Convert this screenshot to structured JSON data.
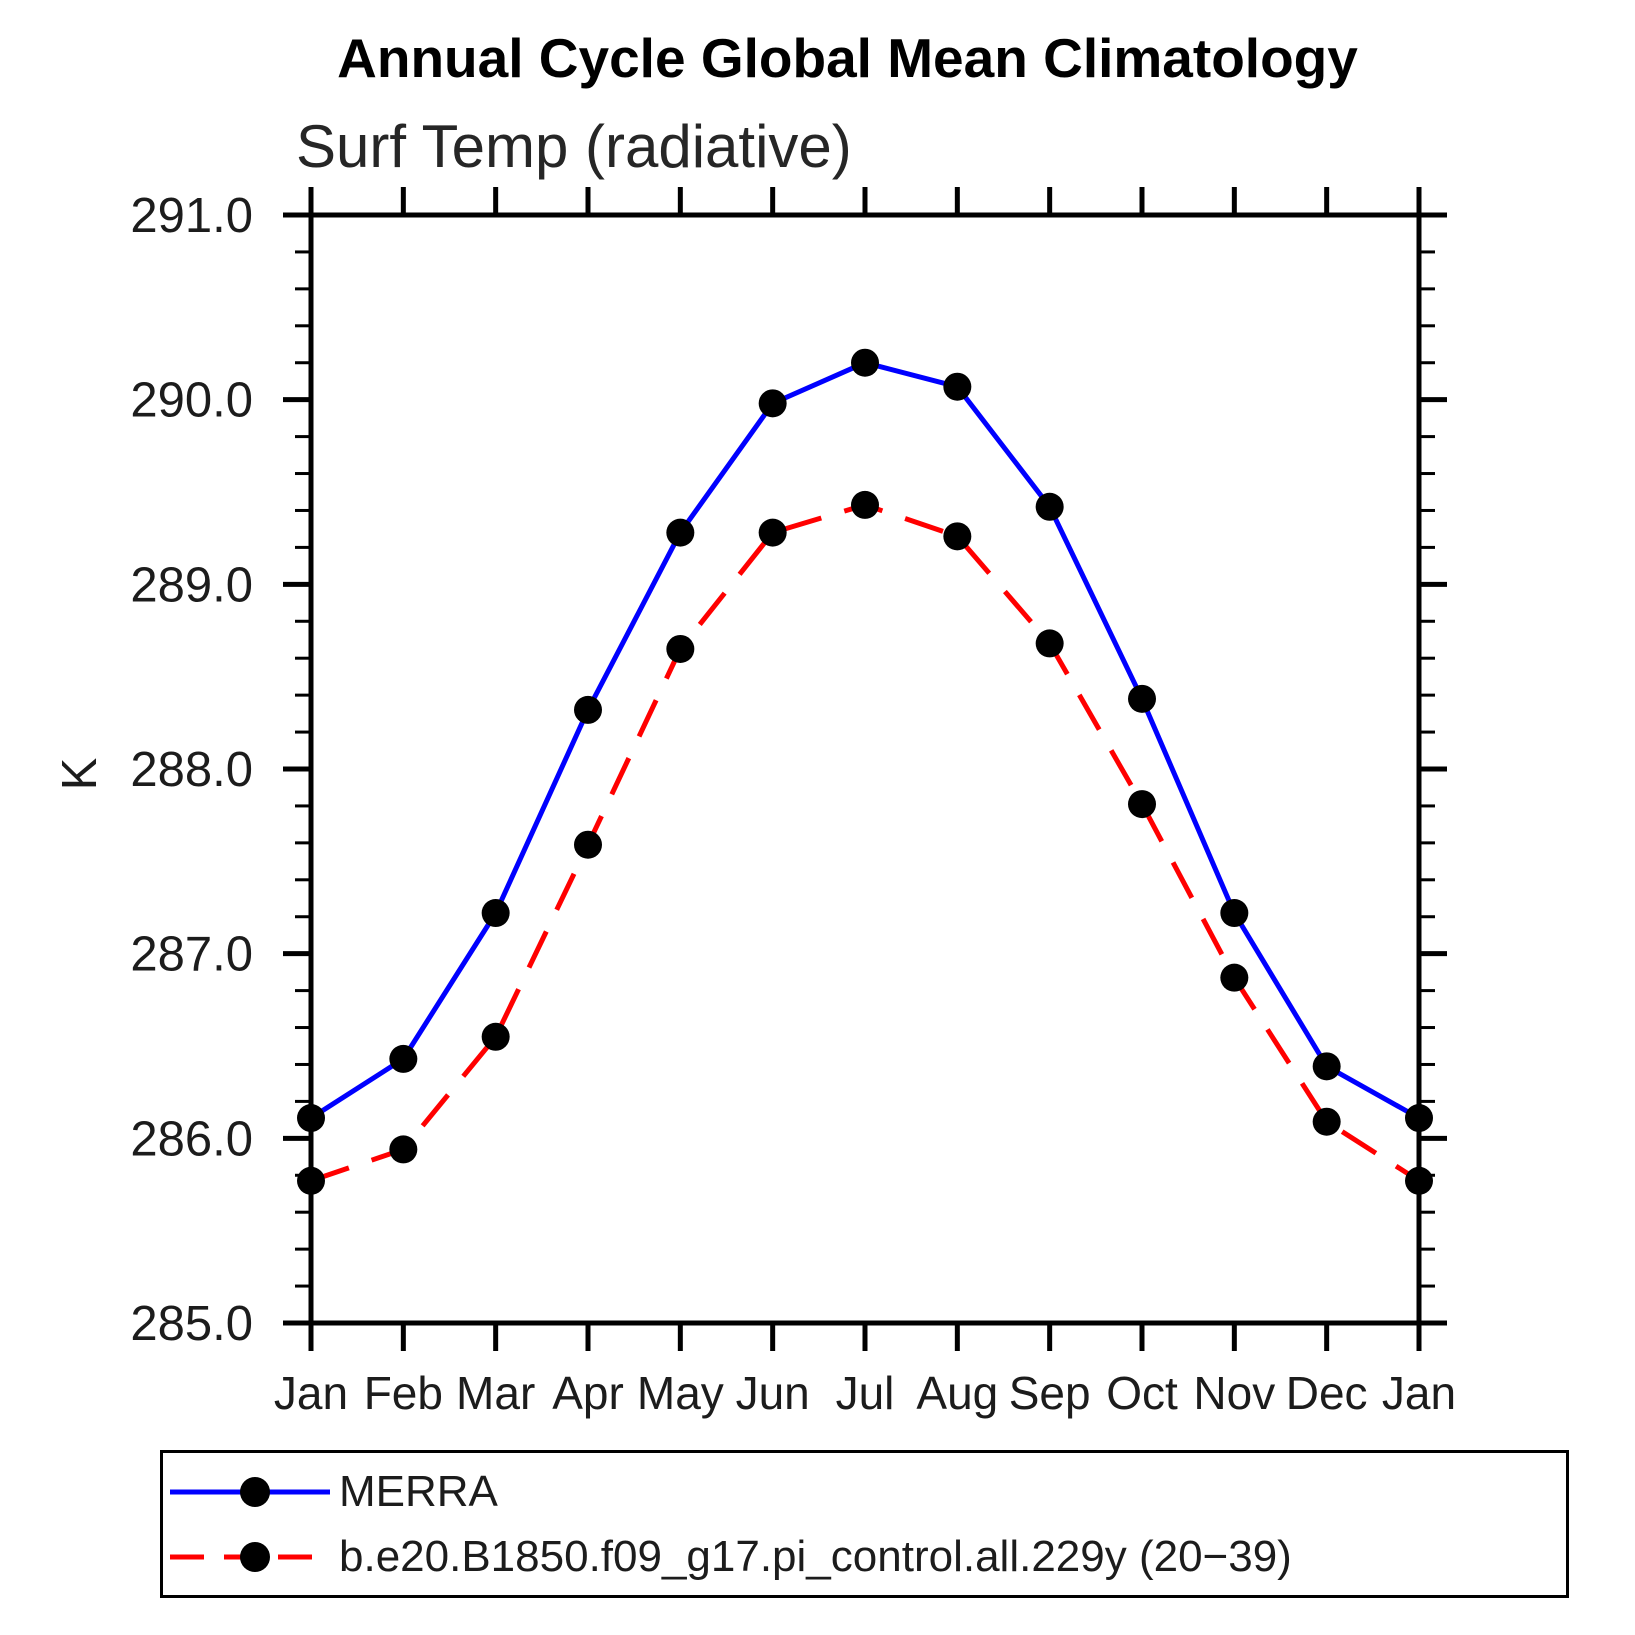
{
  "chart_data": {
    "type": "line",
    "title": "Annual Cycle Global Mean Climatology",
    "left_string": "Surf Temp (radiative)",
    "ylabel": "K",
    "x_tick_labels": [
      "Jan",
      "Feb",
      "Mar",
      "Apr",
      "May",
      "Jun",
      "Jul",
      "Aug",
      "Sep",
      "Oct",
      "Nov",
      "Dec",
      "Jan"
    ],
    "ylim": [
      285.0,
      291.0
    ],
    "y_major_step": 1.0,
    "y_minor_step": 0.2,
    "y_tick_labels": [
      "285.0",
      "286.0",
      "287.0",
      "288.0",
      "289.0",
      "290.0",
      "291.0"
    ],
    "grid": false,
    "legend_position": "bottom",
    "series": [
      {
        "name": "MERRA",
        "color": "#0000ff",
        "style": "solid",
        "marker": "circle",
        "marker_color": "#000000",
        "values": [
          286.11,
          286.43,
          287.22,
          288.32,
          289.28,
          289.98,
          290.2,
          290.07,
          289.42,
          288.38,
          287.22,
          286.39,
          286.11
        ]
      },
      {
        "name": "b.e20.B1850.f09_g17.pi_control.all.229y (20−39)",
        "color": "#ff0000",
        "style": "dashed",
        "marker": "circle",
        "marker_color": "#000000",
        "values": [
          285.77,
          285.94,
          286.55,
          287.59,
          288.65,
          289.28,
          289.43,
          289.26,
          288.68,
          287.81,
          286.87,
          286.09,
          285.77
        ]
      }
    ]
  }
}
